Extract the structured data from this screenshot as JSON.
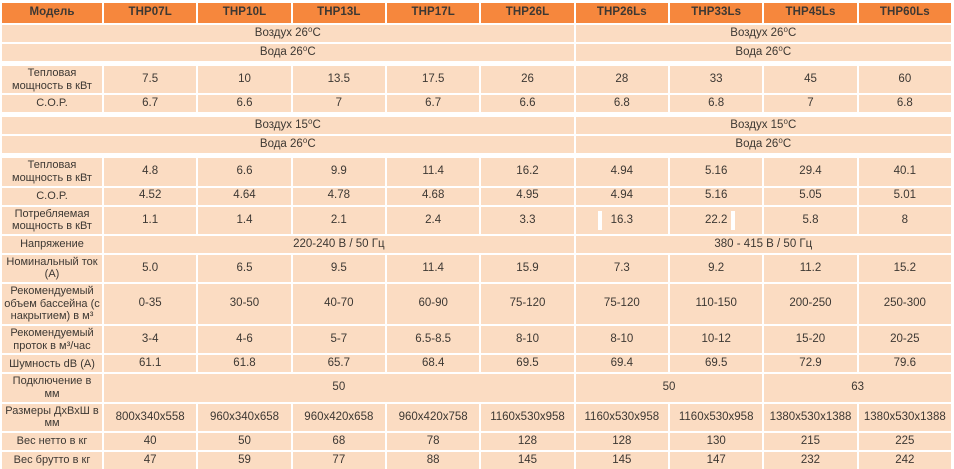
{
  "colors": {
    "header_bg": "#f6873d",
    "cell_bg": "#fbdcc2",
    "text": "#3d3833",
    "grid": "#ffffff"
  },
  "table": {
    "header": [
      "Модель",
      "THP07L",
      "THP10L",
      "THP13L",
      "THP17L",
      "THP26L",
      "THP26Ls",
      "THP33Ls",
      "THP45Ls",
      "THP60Ls"
    ],
    "rows": [
      {
        "name": "air-26",
        "cells": [
          {
            "text": "Воздух 26⁰C",
            "span": 6
          },
          {
            "text": "Воздух 26⁰C",
            "span": 4
          }
        ]
      },
      {
        "name": "water-26",
        "cells": [
          {
            "text": "Вода 26⁰C",
            "span": 6
          },
          {
            "text": "Вода 26⁰C",
            "span": 4
          }
        ]
      },
      {
        "name": "heat-output-air26",
        "section": true,
        "label": "Тепловая мощность в кВт",
        "values": [
          "7.5",
          "10",
          "13.5",
          "17.5",
          "26",
          "28",
          "33",
          "45",
          "60"
        ]
      },
      {
        "name": "cop-air26",
        "label": "C.O.P.",
        "values": [
          "6.7",
          "6.6",
          "7",
          "6.7",
          "6.6",
          "6.8",
          "6.8",
          "7",
          "6.8"
        ]
      },
      {
        "name": "air-15",
        "section": true,
        "cells": [
          {
            "text": "Воздух 15⁰C",
            "span": 6
          },
          {
            "text": "Воздух 15⁰C",
            "span": 4
          }
        ]
      },
      {
        "name": "water-26-b",
        "cells": [
          {
            "text": "Вода 26⁰C",
            "span": 6
          },
          {
            "text": "Вода 26⁰C",
            "span": 4
          }
        ]
      },
      {
        "name": "heat-output-air15",
        "section": true,
        "label": "Тепловая мощность в кВт",
        "values": [
          "4.8",
          "6.6",
          "9.9",
          "11.4",
          "16.2",
          "4.94",
          "5.16",
          "29.4",
          "40.1"
        ]
      },
      {
        "name": "cop-air15",
        "label": "C.O.P.",
        "values": [
          "4.52",
          "4.64",
          "4.78",
          "4.68",
          "4.95",
          "4.94",
          "5.16",
          "5.05",
          "5.01"
        ]
      },
      {
        "name": "power-consumption",
        "label": "Потребляемая мощность в кВт",
        "values": [
          "1.1",
          "1.4",
          "2.1",
          "2.4",
          "3.3",
          {
            "text": "16.3",
            "artifact": "left"
          },
          {
            "text": "22.2",
            "artifact": "right"
          },
          "5.8",
          "8"
        ]
      },
      {
        "name": "voltage",
        "label": "Напряжение",
        "cells": [
          {
            "text": "220-240 В / 50 Гц",
            "span": 5
          },
          {
            "text": "380 - 415 В / 50 Гц",
            "span": 4
          }
        ]
      },
      {
        "name": "nominal-current",
        "label": "Номинальный ток (A)",
        "values": [
          "5.0",
          "6.5",
          "9.5",
          "11.4",
          "15.9",
          "7.3",
          "9.2",
          "11.2",
          "15.2"
        ]
      },
      {
        "name": "pool-volume",
        "label": "Рекомендуемый объем бассейна (с накрытием) в м³",
        "values": [
          "0-35",
          "30-50",
          "40-70",
          "60-90",
          "75-120",
          "75-120",
          "110-150",
          "200-250",
          "250-300"
        ]
      },
      {
        "name": "flow-rate",
        "label": "Рекомендуемый проток в м³/час",
        "values": [
          "3-4",
          "4-6",
          "5-7",
          "6.5-8.5",
          "8-10",
          "8-10",
          "10-12",
          "15-20",
          "20-25"
        ]
      },
      {
        "name": "noise",
        "label": "Шумность dB (A)",
        "values": [
          "61.1",
          "61.8",
          "65.7",
          "68.4",
          "69.5",
          "69.4",
          "69.5",
          "72.9",
          "79.6"
        ]
      },
      {
        "name": "connection",
        "label": "Подключение в мм",
        "cells": [
          {
            "text": "50",
            "span": 5
          },
          {
            "text": "50",
            "span": 2
          },
          {
            "text": "63",
            "span": 2
          }
        ]
      },
      {
        "name": "dimensions",
        "label": "Размеры ДхВхШ в мм",
        "values": [
          "800x340x558",
          "960x340x658",
          "960x420x658",
          "960x420x758",
          "1160x530x958",
          "1160x530x958",
          "1160x530x958",
          "1380x530x1388",
          "1380x530x1388"
        ]
      },
      {
        "name": "net-weight",
        "label": "Вес нетто в кг",
        "values": [
          "40",
          "50",
          "68",
          "78",
          "128",
          "128",
          "130",
          "215",
          "225"
        ]
      },
      {
        "name": "gross-weight",
        "label": "Вес брутто в кг",
        "values": [
          "47",
          "59",
          "77",
          "88",
          "145",
          "145",
          "147",
          "232",
          "242"
        ]
      }
    ]
  }
}
